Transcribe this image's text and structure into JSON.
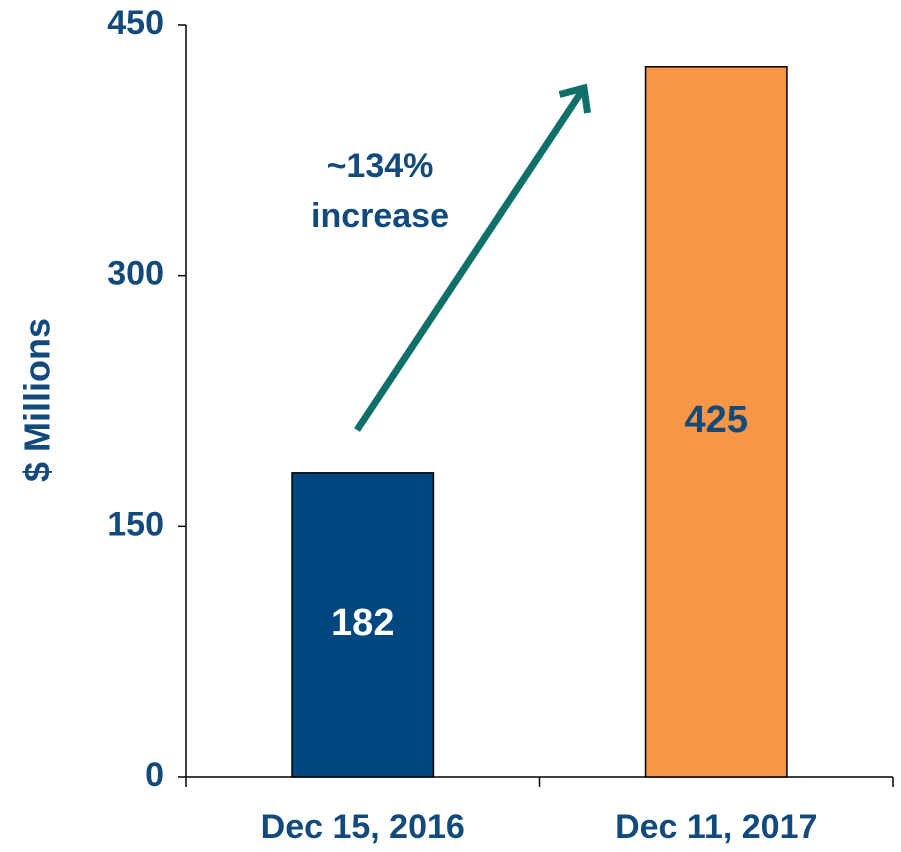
{
  "chart_data": {
    "type": "bar",
    "categories": [
      "Dec 15, 2016",
      "Dec 11, 2017"
    ],
    "values": [
      182,
      425
    ],
    "colors": [
      "#00467f",
      "#f79646"
    ],
    "y_label": "$ Millions",
    "ylim": [
      0,
      450
    ],
    "yticks": [
      0,
      150,
      300,
      450
    ],
    "annotation": [
      "~134%",
      "increase"
    ],
    "grid": false
  }
}
